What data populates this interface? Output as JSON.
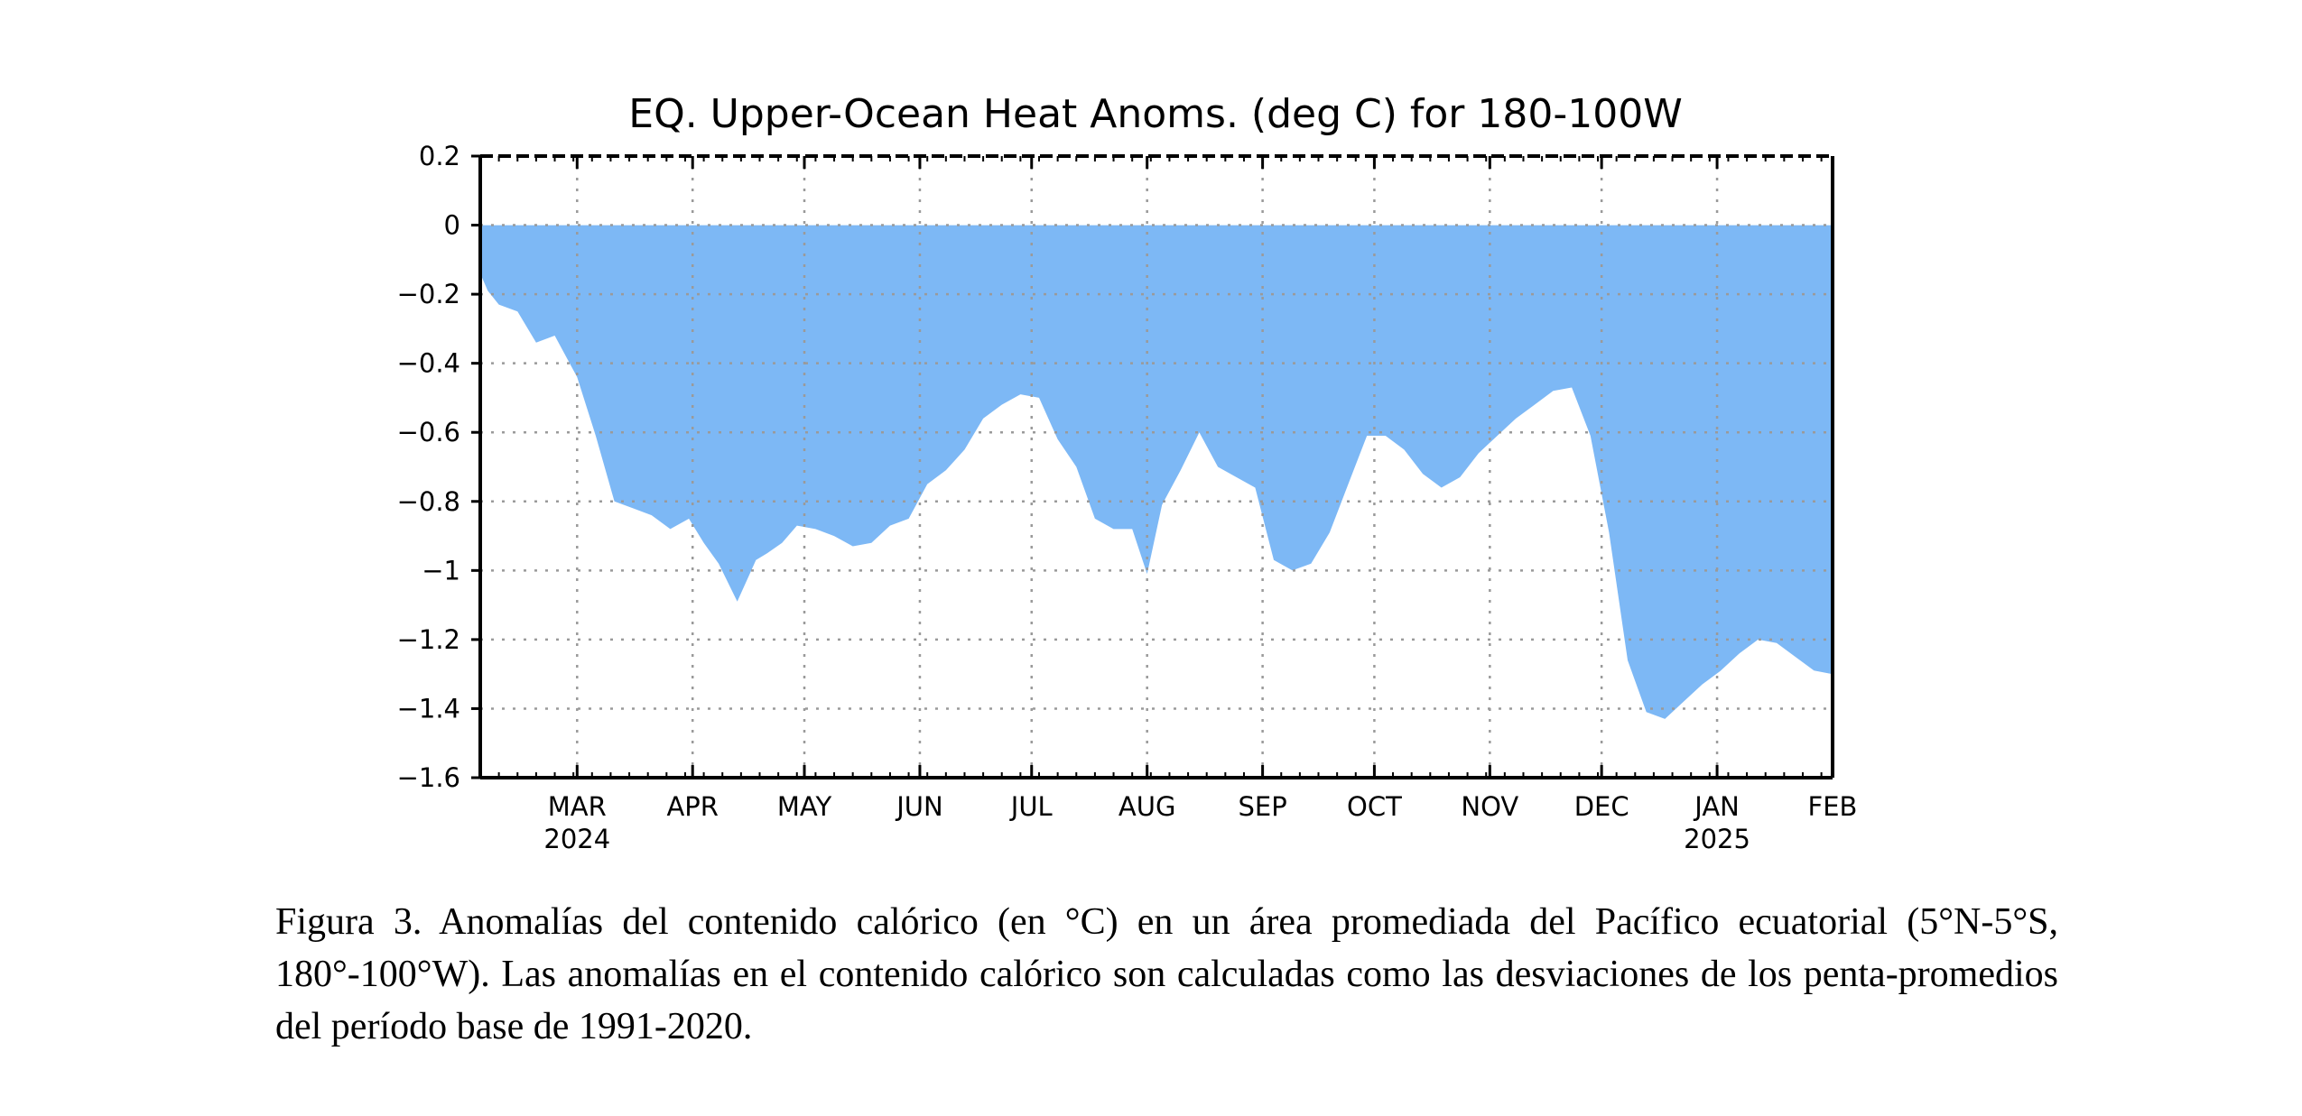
{
  "chart_data": {
    "type": "area",
    "title": "EQ. Upper-Ocean Heat Anoms. (deg C) for 180-100W",
    "xlabel": "",
    "ylabel": "",
    "ylim": [
      -1.6,
      0.2
    ],
    "yticks": [
      0.2,
      0,
      -0.2,
      -0.4,
      -0.6,
      -0.8,
      -1,
      -1.2,
      -1.4,
      -1.6
    ],
    "ytick_labels": [
      "0.2",
      "0",
      "−0.2",
      "−0.4",
      "−0.6",
      "−0.8",
      "−1",
      "−1.2",
      "−1.4",
      "−1.6"
    ],
    "xlim": [
      "2024-02-04",
      "2025-02-01"
    ],
    "xticks": [
      {
        "date": "2024-03-01",
        "label": "MAR",
        "year": "2024"
      },
      {
        "date": "2024-04-01",
        "label": "APR"
      },
      {
        "date": "2024-05-01",
        "label": "MAY"
      },
      {
        "date": "2024-06-01",
        "label": "JUN"
      },
      {
        "date": "2024-07-01",
        "label": "JUL"
      },
      {
        "date": "2024-08-01",
        "label": "AUG"
      },
      {
        "date": "2024-09-01",
        "label": "SEP"
      },
      {
        "date": "2024-10-01",
        "label": "OCT"
      },
      {
        "date": "2024-11-01",
        "label": "NOV"
      },
      {
        "date": "2024-12-01",
        "label": "DEC"
      },
      {
        "date": "2025-01-01",
        "label": "JAN",
        "year": "2025"
      },
      {
        "date": "2025-02-01",
        "label": "FEB"
      }
    ],
    "grid": true,
    "fill_color": "#7db8f5",
    "series": [
      {
        "x": [
          "2024-02-04",
          "2024-02-06",
          "2024-02-09",
          "2024-02-14",
          "2024-02-19",
          "2024-02-24",
          "2024-03-01",
          "2024-03-06",
          "2024-03-11",
          "2024-03-16",
          "2024-03-21",
          "2024-03-26",
          "2024-03-31",
          "2024-04-04",
          "2024-04-08",
          "2024-04-13",
          "2024-04-18",
          "2024-04-21",
          "2024-04-25",
          "2024-04-29",
          "2024-05-04",
          "2024-05-09",
          "2024-05-14",
          "2024-05-19",
          "2024-05-24",
          "2024-05-29",
          "2024-06-03",
          "2024-06-08",
          "2024-06-13",
          "2024-06-18",
          "2024-06-23",
          "2024-06-28",
          "2024-07-03",
          "2024-07-08",
          "2024-07-13",
          "2024-07-18",
          "2024-07-23",
          "2024-07-28",
          "2024-08-01",
          "2024-08-05",
          "2024-08-10",
          "2024-08-15",
          "2024-08-20",
          "2024-08-25",
          "2024-08-30",
          "2024-09-04",
          "2024-09-09",
          "2024-09-14",
          "2024-09-19",
          "2024-09-24",
          "2024-09-29",
          "2024-10-04",
          "2024-10-09",
          "2024-10-14",
          "2024-10-19",
          "2024-10-24",
          "2024-10-29",
          "2024-11-03",
          "2024-11-08",
          "2024-11-13",
          "2024-11-18",
          "2024-11-23",
          "2024-11-28",
          "2024-12-03",
          "2024-12-08",
          "2024-12-13",
          "2024-12-18",
          "2024-12-23",
          "2024-12-28",
          "2025-01-02",
          "2025-01-07",
          "2025-01-12",
          "2025-01-17",
          "2025-01-22",
          "2025-01-27",
          "2025-02-01"
        ],
        "values": [
          -0.14,
          -0.19,
          -0.23,
          -0.25,
          -0.34,
          -0.32,
          -0.44,
          -0.61,
          -0.8,
          -0.82,
          -0.84,
          -0.88,
          -0.85,
          -0.92,
          -0.98,
          -1.09,
          -0.97,
          -0.95,
          -0.92,
          -0.87,
          -0.88,
          -0.9,
          -0.93,
          -0.92,
          -0.87,
          -0.85,
          -0.75,
          -0.71,
          -0.65,
          -0.56,
          -0.52,
          -0.49,
          -0.5,
          -0.62,
          -0.7,
          -0.85,
          -0.88,
          -0.88,
          -1.01,
          -0.81,
          -0.71,
          -0.6,
          -0.7,
          -0.73,
          -0.76,
          -0.97,
          -1.0,
          -0.98,
          -0.89,
          -0.75,
          -0.61,
          -0.61,
          -0.65,
          -0.72,
          -0.76,
          -0.73,
          -0.66,
          -0.61,
          -0.56,
          -0.52,
          -0.48,
          -0.47,
          -0.61,
          -0.89,
          -1.26,
          -1.41,
          -1.43,
          -1.38,
          -1.33,
          -1.29,
          -1.24,
          -1.2,
          -1.21,
          -1.25,
          -1.29,
          -1.3
        ]
      }
    ]
  },
  "caption": {
    "text": "Figura 3. Anomalías del contenido calórico (en °C) en un área promediada del Pacífico ecuatorial (5°N-5°S, 180°-100°W). Las anomalías en el contenido calórico son calculadas como las desviaciones de los penta-promedios del período base de 1991-2020."
  }
}
